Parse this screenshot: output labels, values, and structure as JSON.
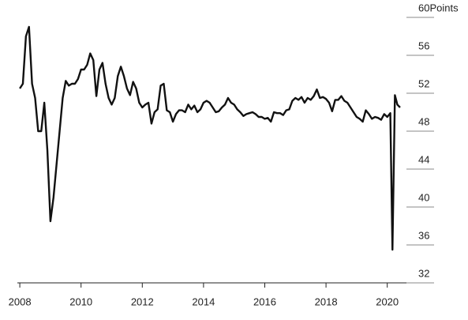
{
  "chart_data": {
    "type": "line",
    "y_label": "Points",
    "x": [
      2008.0,
      2008.1,
      2008.2,
      2008.3,
      2008.4,
      2008.5,
      2008.6,
      2008.7,
      2008.8,
      2008.9,
      2009.0,
      2009.1,
      2009.2,
      2009.3,
      2009.4,
      2009.5,
      2009.6,
      2009.7,
      2009.8,
      2009.9,
      2010.0,
      2010.1,
      2010.2,
      2010.3,
      2010.4,
      2010.5,
      2010.6,
      2010.7,
      2010.8,
      2010.9,
      2011.0,
      2011.1,
      2011.2,
      2011.3,
      2011.4,
      2011.5,
      2011.6,
      2011.7,
      2011.8,
      2011.9,
      2012.0,
      2012.1,
      2012.2,
      2012.3,
      2012.4,
      2012.5,
      2012.6,
      2012.7,
      2012.8,
      2012.9,
      2013.0,
      2013.1,
      2013.2,
      2013.3,
      2013.4,
      2013.5,
      2013.6,
      2013.7,
      2013.8,
      2013.9,
      2014.0,
      2014.1,
      2014.2,
      2014.3,
      2014.4,
      2014.5,
      2014.6,
      2014.7,
      2014.8,
      2014.9,
      2015.0,
      2015.1,
      2015.2,
      2015.3,
      2015.4,
      2015.5,
      2015.6,
      2015.7,
      2015.8,
      2015.9,
      2016.0,
      2016.1,
      2016.2,
      2016.3,
      2016.4,
      2016.5,
      2016.6,
      2016.7,
      2016.8,
      2016.9,
      2017.0,
      2017.1,
      2017.2,
      2017.3,
      2017.4,
      2017.5,
      2017.6,
      2017.7,
      2017.8,
      2017.9,
      2018.0,
      2018.1,
      2018.2,
      2018.3,
      2018.4,
      2018.5,
      2018.6,
      2018.7,
      2018.8,
      2018.9,
      2019.0,
      2019.1,
      2019.2,
      2019.3,
      2019.4,
      2019.5,
      2019.6,
      2019.7,
      2019.8,
      2019.9,
      2020.0,
      2020.1,
      2020.17,
      2020.25,
      2020.33,
      2020.42
    ],
    "series": [
      {
        "color": "#111111",
        "values": [
          52.5,
          53,
          58,
          59,
          53,
          51.5,
          48,
          48,
          51,
          46,
          38.5,
          41,
          44.5,
          48,
          51.5,
          53.3,
          52.8,
          53,
          53,
          53.5,
          54.5,
          54.5,
          55,
          56.2,
          55.5,
          51.7,
          54.5,
          55.2,
          53,
          51.5,
          50.8,
          51.5,
          53.8,
          54.8,
          53.8,
          52.5,
          51.8,
          53.2,
          52.5,
          51,
          50.5,
          50.8,
          51,
          48.8,
          50,
          50.3,
          52.8,
          53,
          50.2,
          50,
          49,
          49.8,
          50.2,
          50.2,
          50,
          50.8,
          50.3,
          50.7,
          50,
          50.3,
          51,
          51.2,
          51,
          50.5,
          50,
          50.1,
          50.5,
          50.8,
          51.5,
          51,
          50.8,
          50.3,
          50,
          49.6,
          49.8,
          49.9,
          50,
          49.8,
          49.5,
          49.5,
          49.3,
          49.4,
          49,
          50,
          49.9,
          49.9,
          49.7,
          50.2,
          50.3,
          51.2,
          51.5,
          51.3,
          51.6,
          51,
          51.5,
          51.3,
          51.7,
          52.4,
          51.5,
          51.6,
          51.4,
          51,
          50.1,
          51.3,
          51.3,
          51.7,
          51.2,
          51,
          50.5,
          50,
          49.5,
          49.3,
          49,
          50.2,
          49.8,
          49.3,
          49.5,
          49.4,
          49.2,
          49.8,
          49.5,
          49.9,
          35.5,
          51.8,
          50.8,
          50.5
        ]
      }
    ],
    "xlim": [
      2007.92,
      2021.4
    ],
    "xticks": [
      2008,
      2010,
      2012,
      2014,
      2016,
      2018,
      2020
    ],
    "ylim": [
      32,
      60
    ],
    "yticks": [
      32,
      36,
      40,
      44,
      48,
      52,
      56,
      60
    ]
  }
}
